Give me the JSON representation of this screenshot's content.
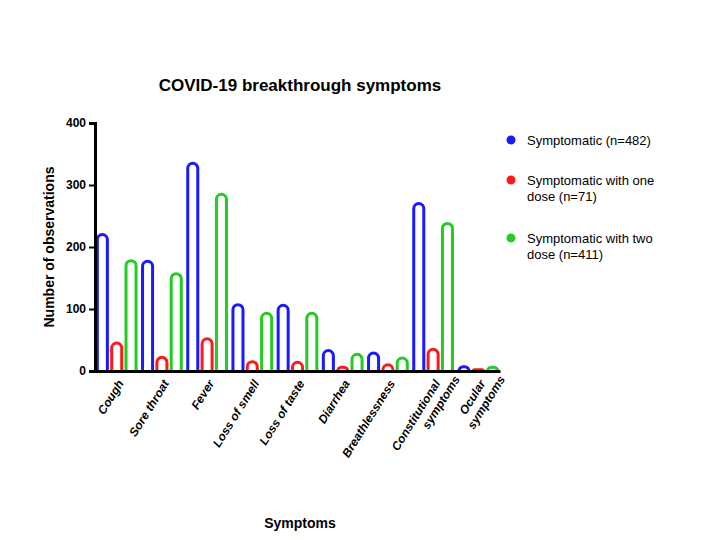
{
  "chart_data": {
    "type": "bar",
    "title": "COVID-19 breakthrough symptoms",
    "x_label": "Symptoms",
    "y_label": "Number of observations",
    "categories": [
      "Cough",
      "Sore throat",
      "Fever",
      "Loss of smell",
      "Loss of taste",
      "Diarrhea",
      "Breathlessness",
      "Constitutional symptoms",
      "Ocular symptoms"
    ],
    "series": [
      {
        "name": "Symptomatic (n=482)",
        "color": "#1a1aff",
        "values": [
          220,
          177,
          335,
          107,
          106,
          33,
          29,
          270,
          7
        ]
      },
      {
        "name": "Symptomatic with one dose (n=71)",
        "color": "#ff1a1a",
        "values": [
          45,
          22,
          52,
          15,
          14,
          6,
          10,
          35,
          2
        ]
      },
      {
        "name": "Symptomatic with two dose (n=411)",
        "color": "#22cc22",
        "values": [
          178,
          157,
          285,
          93,
          93,
          27,
          21,
          238,
          6
        ]
      }
    ],
    "ylim": [
      0,
      400
    ],
    "yticks": [
      0,
      100,
      200,
      300,
      400
    ],
    "legend": "right",
    "grid": false
  }
}
